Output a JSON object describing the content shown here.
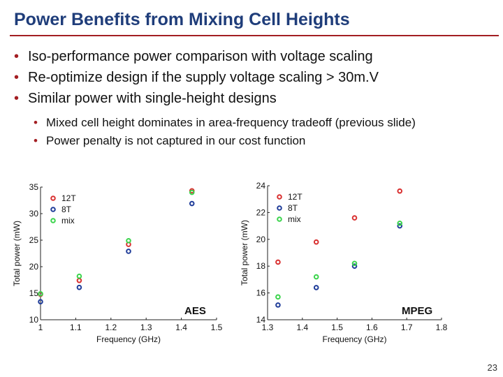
{
  "slide": {
    "title": "Power Benefits from Mixing Cell Heights",
    "bullets": [
      "Iso-performance power comparison with voltage scaling",
      "Re-optimize design if the supply voltage scaling > 30m.V",
      "Similar power with single-height designs"
    ],
    "subbullets": [
      "Mixed cell height dominates in area-frequency tradeoff (previous slide)",
      "Power penalty is not captured in our cost function"
    ],
    "bullet_color": "#a31e22",
    "title_color": "#1f3d7a",
    "page_number": "23"
  },
  "chart_data": [
    {
      "type": "scatter",
      "title": "AES",
      "xlabel": "Frequency (GHz)",
      "ylabel": "Total power (mW)",
      "xlim": [
        1.0,
        1.5
      ],
      "ylim": [
        10,
        35
      ],
      "xticks": [
        "1",
        "1.1",
        "1.2",
        "1.3",
        "1.4",
        "1.5"
      ],
      "yticks": [
        "10",
        "15",
        "20",
        "25",
        "30",
        "35"
      ],
      "legend_position": "top-left",
      "series": [
        {
          "name": "12T",
          "color": "#d93030",
          "x": [
            1.0,
            1.11,
            1.25,
            1.43
          ],
          "y": [
            14.8,
            17.4,
            24.2,
            34.3
          ]
        },
        {
          "name": "8T",
          "color": "#1f3c99",
          "x": [
            1.0,
            1.11,
            1.25,
            1.43
          ],
          "y": [
            13.4,
            16.1,
            22.9,
            31.9
          ]
        },
        {
          "name": "mix",
          "color": "#3bd44c",
          "x": [
            1.0,
            1.11,
            1.25,
            1.43
          ],
          "y": [
            14.9,
            18.2,
            24.9,
            34.0
          ]
        }
      ]
    },
    {
      "type": "scatter",
      "title": "MPEG",
      "xlabel": "Frequency (GHz)",
      "ylabel": "Total power (mW)",
      "xlim": [
        1.3,
        1.8
      ],
      "ylim": [
        14,
        24
      ],
      "xticks": [
        "1.3",
        "1.4",
        "1.5",
        "1.6",
        "1.7",
        "1.8"
      ],
      "yticks": [
        "14",
        "16",
        "18",
        "20",
        "22",
        "24"
      ],
      "legend_position": "top-left",
      "series": [
        {
          "name": "12T",
          "color": "#d93030",
          "x": [
            1.33,
            1.44,
            1.55,
            1.68
          ],
          "y": [
            18.3,
            19.8,
            21.6,
            23.6
          ]
        },
        {
          "name": "8T",
          "color": "#1f3c99",
          "x": [
            1.33,
            1.44,
            1.55,
            1.68
          ],
          "y": [
            15.1,
            16.4,
            18.0,
            21.0
          ]
        },
        {
          "name": "mix",
          "color": "#3bd44c",
          "x": [
            1.33,
            1.44,
            1.55,
            1.68
          ],
          "y": [
            15.7,
            17.2,
            18.2,
            21.2
          ]
        }
      ]
    }
  ]
}
